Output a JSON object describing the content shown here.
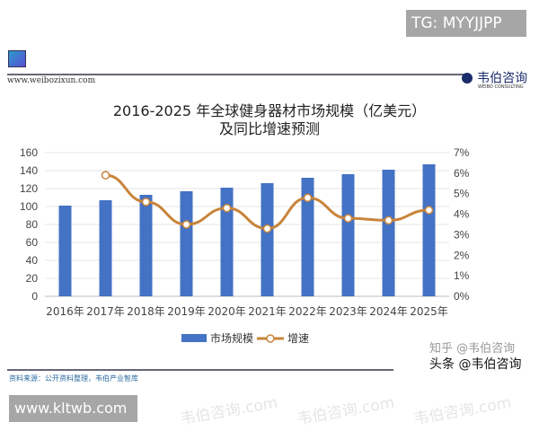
{
  "overlay_tag": "TG: MYYJJPP",
  "header": {
    "site": "www.weibozixun.com",
    "logo_name": "韦伯咨询",
    "logo_en": "WEIBO CONSULTING"
  },
  "footer": {
    "source": "资料来源：公开资料整理，韦伯产业智库",
    "watermark_zhihu": "知乎 @韦伯咨询",
    "watermark_toutiao": "头条 @韦伯咨询",
    "bottom_site": "www.kltwb.com"
  },
  "background_watermark": "韦伯咨询.com",
  "chart_data": {
    "type": "bar+line",
    "title": "2016-2025 年全球健身器材市场规模（亿美元）",
    "subtitle": "及同比增速预测",
    "categories": [
      "2016年",
      "2017年",
      "2018年",
      "2019年",
      "2020年",
      "2021年",
      "2022年",
      "2023年",
      "2024年",
      "2025年"
    ],
    "series": [
      {
        "name": "市场规模",
        "type": "bar",
        "axis": "left",
        "color": "#4472c4",
        "values": [
          101,
          107,
          113,
          117,
          121,
          126,
          132,
          136,
          141,
          147
        ]
      },
      {
        "name": "增速",
        "type": "line",
        "axis": "right",
        "color": "#c8843a",
        "unit": "%",
        "values": [
          null,
          5.9,
          4.6,
          3.5,
          4.3,
          3.3,
          4.8,
          3.8,
          3.7,
          4.2
        ]
      }
    ],
    "left_axis": {
      "ylim": [
        0,
        160
      ],
      "ticks": [
        "0",
        "20",
        "40",
        "60",
        "80",
        "100",
        "120",
        "140",
        "160"
      ]
    },
    "right_axis": {
      "ylim": [
        0,
        7
      ],
      "ticks": [
        "0%",
        "1%",
        "2%",
        "3%",
        "4%",
        "5%",
        "6%",
        "7%"
      ]
    },
    "grid": true,
    "legend": "bottom"
  }
}
